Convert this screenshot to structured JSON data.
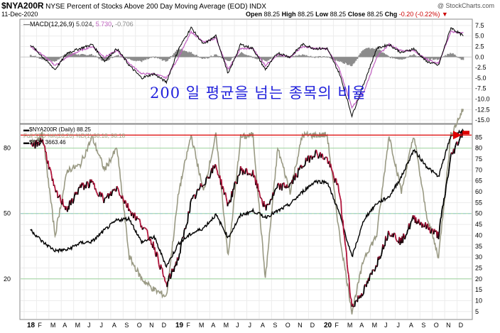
{
  "header": {
    "symbol": "$NYA200R",
    "description": "NYSE Percent of Stocks Above 200 Day Moving Average (EOD)",
    "index_tag": "INDX",
    "date": "11-Dec-2020",
    "watermark": "@ StockCharts.com",
    "quote": {
      "open_label": "Open",
      "open": "88.25",
      "high_label": "High",
      "high": "88.25",
      "low_label": "Low",
      "low": "88.25",
      "close_label": "Close",
      "close": "88.25",
      "chg_label": "Chg",
      "chg": "-0.20 (-0.22%)"
    }
  },
  "macd_panel": {
    "label": "MACD(12,26,9)",
    "macd": "5.024",
    "signal": "5.730",
    "hist": "-0.706"
  },
  "main_panel": {
    "legend": [
      {
        "text": "$NYA200R (Daily) 88.25",
        "color": "#000000"
      },
      {
        "text": "Full STO %K(20,20) %D(1) 98.18, 98.18",
        "color": "#9c9c7a"
      },
      {
        "text": "$SPX 3663.46",
        "color": "#000000"
      }
    ]
  },
  "annotation": "200 일 평균을 넘는 종목의 비율",
  "colors": {
    "price_up": "#000000",
    "price_down": "#b0133a",
    "stoch": "#9a9a84",
    "spx": "#000000",
    "macd_line": "#000000",
    "signal_line": "#c060c0",
    "histogram": "#8c8c8c",
    "horizontal_line": "#dd0000",
    "annotation": "#1f1fdc"
  },
  "chart_data": [
    {
      "type": "line",
      "title": "NYSE Percent of Stocks Above 200 Day Moving Average (EOD)",
      "y_axis_ticks_right": [
        5,
        10,
        15,
        20,
        25,
        30,
        35,
        40,
        45,
        50,
        55,
        60,
        65,
        70,
        75,
        80,
        85
      ],
      "y_axis_ticks_left": [
        20,
        50,
        80
      ],
      "ylim": [
        2,
        90
      ],
      "x_axis_ticks": [
        "18",
        "F",
        "M",
        "A",
        "M",
        "J",
        "J",
        "A",
        "S",
        "O",
        "N",
        "D",
        "19",
        "F",
        "M",
        "A",
        "M",
        "J",
        "J",
        "A",
        "S",
        "O",
        "N",
        "D",
        "20",
        "F",
        "M",
        "A",
        "M",
        "J",
        "J",
        "A",
        "S",
        "O",
        "N",
        "D"
      ],
      "xlim": [
        "2018-01",
        "2020-12"
      ],
      "horizontal_line": 86,
      "series": [
        {
          "name": "$NYA200R",
          "x": [
            "2018-01",
            "2018-02",
            "2018-03",
            "2018-04",
            "2018-05",
            "2018-06",
            "2018-07",
            "2018-08",
            "2018-09",
            "2018-10",
            "2018-11",
            "2018-12",
            "2019-01",
            "2019-02",
            "2019-03",
            "2019-04",
            "2019-05",
            "2019-06",
            "2019-07",
            "2019-08",
            "2019-09",
            "2019-10",
            "2019-11",
            "2019-12",
            "2020-01",
            "2020-02",
            "2020-03",
            "2020-04",
            "2020-05",
            "2020-06",
            "2020-07",
            "2020-08",
            "2020-09",
            "2020-10",
            "2020-11",
            "2020-12"
          ],
          "values": [
            80,
            84,
            60,
            52,
            62,
            64,
            56,
            62,
            52,
            45,
            35,
            17,
            30,
            55,
            64,
            72,
            54,
            70,
            68,
            52,
            62,
            63,
            72,
            78,
            75,
            60,
            7,
            15,
            27,
            42,
            37,
            48,
            44,
            40,
            76,
            88
          ]
        },
        {
          "name": "Full STO %K(20,20) %D(1)",
          "x": [
            "2018-01",
            "2018-02",
            "2018-03",
            "2018-04",
            "2018-05",
            "2018-06",
            "2018-07",
            "2018-08",
            "2018-09",
            "2018-10",
            "2018-11",
            "2018-12",
            "2019-01",
            "2019-02",
            "2019-03",
            "2019-04",
            "2019-05",
            "2019-06",
            "2019-07",
            "2019-08",
            "2019-09",
            "2019-10",
            "2019-11",
            "2019-12",
            "2020-01",
            "2020-02",
            "2020-03",
            "2020-04",
            "2020-05",
            "2020-06",
            "2020-07",
            "2020-08",
            "2020-09",
            "2020-10",
            "2020-11",
            "2020-12"
          ],
          "values": [
            82,
            86,
            40,
            70,
            72,
            85,
            70,
            80,
            30,
            20,
            15,
            12,
            60,
            86,
            60,
            86,
            30,
            85,
            86,
            20,
            80,
            60,
            86,
            86,
            86,
            40,
            5,
            30,
            40,
            86,
            60,
            86,
            50,
            30,
            86,
            98
          ]
        },
        {
          "name": "$SPX",
          "x": [
            "2018-01",
            "2018-02",
            "2018-03",
            "2018-04",
            "2018-05",
            "2018-06",
            "2018-07",
            "2018-08",
            "2018-09",
            "2018-10",
            "2018-11",
            "2018-12",
            "2019-01",
            "2019-02",
            "2019-03",
            "2019-04",
            "2019-05",
            "2019-06",
            "2019-07",
            "2019-08",
            "2019-09",
            "2019-10",
            "2019-11",
            "2019-12",
            "2020-01",
            "2020-02",
            "2020-03",
            "2020-04",
            "2020-05",
            "2020-06",
            "2020-07",
            "2020-08",
            "2020-09",
            "2020-10",
            "2020-11",
            "2020-12"
          ],
          "values": [
            2823,
            2714,
            2641,
            2648,
            2705,
            2718,
            2816,
            2901,
            2914,
            2711,
            2760,
            2507,
            2704,
            2784,
            2834,
            2946,
            2752,
            2942,
            2980,
            2926,
            2977,
            3038,
            3141,
            3231,
            3226,
            2954,
            2585,
            2912,
            3044,
            3100,
            3271,
            3500,
            3363,
            3270,
            3622,
            3663
          ]
        }
      ]
    },
    {
      "type": "line",
      "title": "MACD(12,26,9)",
      "y_axis_ticks_right": [
        7.5,
        5.0,
        2.5,
        0.0,
        -2.5,
        -5.0,
        -7.5,
        -10.0,
        -12.5,
        -15.0
      ],
      "ylim": [
        -15.5,
        8.5
      ],
      "series": [
        {
          "name": "MACD",
          "x": [
            "2018-01",
            "2018-02",
            "2018-03",
            "2018-04",
            "2018-05",
            "2018-06",
            "2018-07",
            "2018-08",
            "2018-09",
            "2018-10",
            "2018-11",
            "2018-12",
            "2019-01",
            "2019-02",
            "2019-03",
            "2019-04",
            "2019-05",
            "2019-06",
            "2019-07",
            "2019-08",
            "2019-09",
            "2019-10",
            "2019-11",
            "2019-12",
            "2020-01",
            "2020-02",
            "2020-03",
            "2020-04",
            "2020-05",
            "2020-06",
            "2020-07",
            "2020-08",
            "2020-09",
            "2020-10",
            "2020-11",
            "2020-12"
          ],
          "values": [
            3,
            0,
            -3,
            1,
            2,
            3,
            -1,
            2,
            -2,
            -5,
            -4,
            -6,
            2,
            7,
            3,
            5,
            -4,
            3,
            2,
            -3,
            1,
            0,
            3,
            2,
            2,
            -4,
            -14,
            -6,
            2,
            3,
            1,
            2,
            -1,
            -2,
            7,
            5.024
          ]
        },
        {
          "name": "Signal",
          "x": [
            "2018-01",
            "2018-02",
            "2018-03",
            "2018-04",
            "2018-05",
            "2018-06",
            "2018-07",
            "2018-08",
            "2018-09",
            "2018-10",
            "2018-11",
            "2018-12",
            "2019-01",
            "2019-02",
            "2019-03",
            "2019-04",
            "2019-05",
            "2019-06",
            "2019-07",
            "2019-08",
            "2019-09",
            "2019-10",
            "2019-11",
            "2019-12",
            "2020-01",
            "2020-02",
            "2020-03",
            "2020-04",
            "2020-05",
            "2020-06",
            "2020-07",
            "2020-08",
            "2020-09",
            "2020-10",
            "2020-11",
            "2020-12"
          ],
          "values": [
            2.5,
            0.5,
            -2,
            0,
            1.5,
            2.5,
            0,
            1.5,
            -1.5,
            -4,
            -4,
            -5,
            0,
            6,
            3.5,
            4.5,
            -3,
            2,
            2,
            -2,
            0.5,
            0,
            2.5,
            2,
            2,
            -3,
            -12,
            -8,
            0,
            3,
            1.5,
            1.5,
            -0.5,
            -1.5,
            6,
            5.73
          ]
        },
        {
          "name": "Histogram",
          "x": [
            "2018-01",
            "2018-02",
            "2018-03",
            "2018-04",
            "2018-05",
            "2018-06",
            "2018-07",
            "2018-08",
            "2018-09",
            "2018-10",
            "2018-11",
            "2018-12",
            "2019-01",
            "2019-02",
            "2019-03",
            "2019-04",
            "2019-05",
            "2019-06",
            "2019-07",
            "2019-08",
            "2019-09",
            "2019-10",
            "2019-11",
            "2019-12",
            "2020-01",
            "2020-02",
            "2020-03",
            "2020-04",
            "2020-05",
            "2020-06",
            "2020-07",
            "2020-08",
            "2020-09",
            "2020-10",
            "2020-11",
            "2020-12"
          ],
          "values": [
            0.5,
            -0.5,
            -1,
            1,
            0.5,
            0.5,
            -1,
            0.5,
            -0.5,
            -1,
            0,
            -1,
            2,
            1,
            -0.5,
            0.5,
            -1,
            1,
            0,
            -1,
            0.5,
            0,
            0.5,
            0,
            0,
            -1,
            -2,
            2,
            2,
            0,
            -0.5,
            0.5,
            -0.5,
            -0.5,
            1,
            -0.706
          ]
        }
      ]
    }
  ]
}
